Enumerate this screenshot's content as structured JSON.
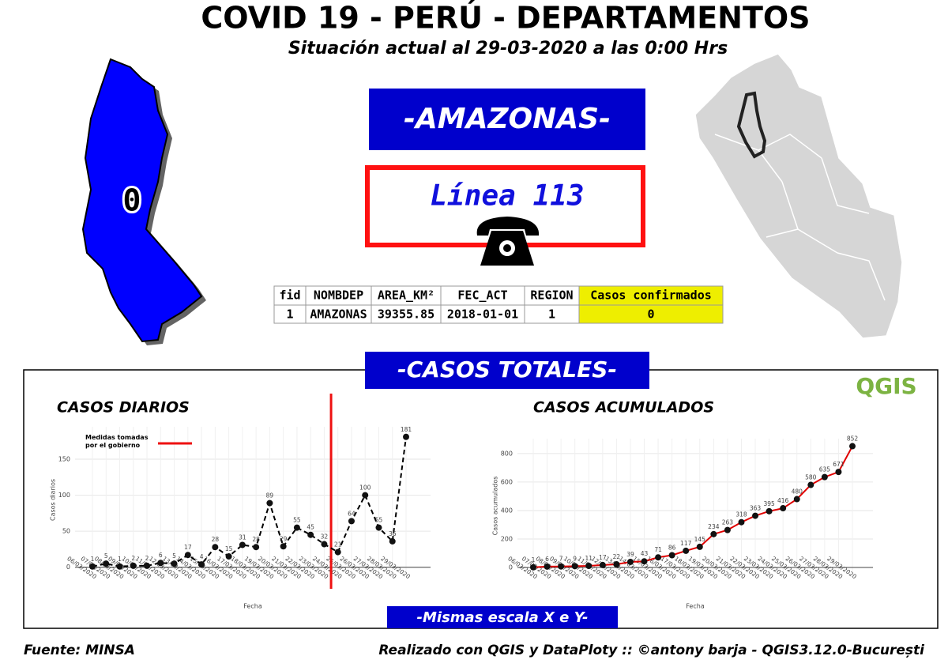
{
  "header": {
    "title": "COVID 19 - PERÚ - DEPARTAMENTOS",
    "subtitle": "Situación actual al 29-03-2020 a las 0:00 Hrs"
  },
  "department": "-AMAZONAS-",
  "hotline": "Línea 113",
  "table": {
    "columns": [
      "fid",
      "NOMBDEP",
      "AREA_KM²",
      "FEC_ACT",
      "REGION",
      "Casos confirmados"
    ],
    "rows": [
      [
        "1",
        "AMAZONAS",
        "39355.85",
        "2018-01-01",
        "1",
        "0"
      ]
    ]
  },
  "section_title": "-CASOS TOTALES-",
  "logo": "QGIS",
  "scale_note": "-Mismas escala X e Y-",
  "footer": {
    "source": "Fuente: MINSA",
    "credit": "Realizado con QGIS y DataPloty :: ©antony barja - QGIS3.12.0-București"
  },
  "chart_data": [
    {
      "type": "line",
      "title": "CASOS DIARIOS",
      "x_label": "Fecha",
      "y_label": "Casos diarios",
      "categories": [
        "06/03/2020",
        "07/03/2020",
        "08/03/2020",
        "09/03/2020",
        "10/03/2020",
        "11/03/2020",
        "12/03/2020",
        "13/03/2020",
        "14/03/2020",
        "15/03/2020",
        "16/03/2020",
        "17/03/2020",
        "18/03/2020",
        "19/03/2020",
        "20/03/2020",
        "21/03/2020",
        "22/03/2020",
        "23/03/2020",
        "24/03/2020",
        "25/03/2020",
        "26/03/2020",
        "27/03/2020",
        "28/03/2020",
        "29/03/2020"
      ],
      "series": [
        {
          "name": "Casos diarios",
          "color": "#000000",
          "values": [
            1,
            5,
            1,
            2,
            2,
            6,
            5,
            17,
            4,
            28,
            15,
            31,
            28,
            89,
            29,
            55,
            45,
            32,
            21,
            64,
            100,
            55,
            36,
            181
          ]
        }
      ],
      "ylim": [
        -8,
        195
      ],
      "yticks": [
        0,
        50,
        100,
        150
      ],
      "grid": true,
      "dashed": true,
      "vline": {
        "name": "Medidas tomadas por el gobierno",
        "color": "#ee1111",
        "after": "23/03/2020"
      }
    },
    {
      "type": "line",
      "title": "CASOS ACUMULADOS",
      "x_label": "Fecha",
      "y_label": "Casos acumulados",
      "categories": [
        "06/03/2020",
        "07/03/2020",
        "08/03/2020",
        "09/03/2020",
        "10/03/2020",
        "11/03/2020",
        "12/03/2020",
        "13/03/2020",
        "14/03/2020",
        "15/03/2020",
        "16/03/2020",
        "17/03/2020",
        "18/03/2020",
        "19/03/2020",
        "20/03/2020",
        "21/03/2020",
        "22/03/2020",
        "23/03/2020",
        "24/03/2020",
        "25/03/2020",
        "26/03/2020",
        "27/03/2020",
        "28/03/2020",
        "29/03/2020"
      ],
      "series": [
        {
          "name": "Casos acumulados",
          "color": "#e00000",
          "values": [
            1,
            6,
            7,
            9,
            11,
            17,
            22,
            39,
            43,
            71,
            86,
            117,
            145,
            234,
            263,
            318,
            363,
            395,
            416,
            480,
            580,
            635,
            671,
            852
          ]
        }
      ],
      "ylim": [
        -39,
        905
      ],
      "yticks": [
        0,
        200,
        400,
        600,
        800
      ],
      "grid": true,
      "dashed": false
    }
  ]
}
